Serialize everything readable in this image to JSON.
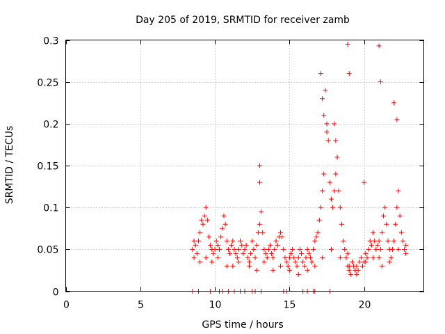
{
  "chart_data": {
    "type": "scatter",
    "title": "Day 205 of 2019, SRMTID for receiver zamb",
    "xlabel": "GPS time / hours",
    "ylabel": "SRMTID / TECUs",
    "xlim": [
      0,
      24
    ],
    "ylim": [
      0,
      0.3
    ],
    "x_ticks": [
      0,
      5,
      10,
      15,
      20
    ],
    "x_tick_labels": [
      "0",
      "5",
      "10",
      "15",
      "20"
    ],
    "y_ticks": [
      0,
      0.05,
      0.1,
      0.15,
      0.2,
      0.25,
      0.3
    ],
    "y_tick_labels": [
      "0",
      "0.05",
      "0.1",
      "0.15",
      "0.2",
      "0.25",
      "0.3"
    ],
    "grid": true,
    "marker": "+",
    "color": "#ff0000",
    "series": [
      {
        "name": "SRMTID",
        "x": [
          8.5,
          8.6,
          8.7,
          8.8,
          8.9,
          9.0,
          9.1,
          9.2,
          9.3,
          9.4,
          9.5,
          9.6,
          9.7,
          9.8,
          9.9,
          10.0,
          10.1,
          10.2,
          10.3,
          10.4,
          10.5,
          10.6,
          10.7,
          10.8,
          10.9,
          11.0,
          11.1,
          11.2,
          11.3,
          11.4,
          11.5,
          11.6,
          11.7,
          11.8,
          11.9,
          12.0,
          12.1,
          12.2,
          12.3,
          12.4,
          12.5,
          12.6,
          12.7,
          12.8,
          12.9,
          13.0,
          13.0,
          13.0,
          13.1,
          13.2,
          13.3,
          13.4,
          13.5,
          13.6,
          13.7,
          13.8,
          13.9,
          14.0,
          14.1,
          14.2,
          14.3,
          14.4,
          14.5,
          14.6,
          14.7,
          14.8,
          14.9,
          15.0,
          15.1,
          15.2,
          15.3,
          15.4,
          15.5,
          15.6,
          15.7,
          15.8,
          15.9,
          16.0,
          16.1,
          16.2,
          16.3,
          16.4,
          16.5,
          16.6,
          16.7,
          16.8,
          16.9,
          17.0,
          17.1,
          17.2,
          17.3,
          17.4,
          17.5,
          17.6,
          17.7,
          17.8,
          17.9,
          18.0,
          18.1,
          18.2,
          18.3,
          18.4,
          18.5,
          18.6,
          18.7,
          18.8,
          18.9,
          19.0,
          19.0,
          19.1,
          19.2,
          19.3,
          19.4,
          19.5,
          19.6,
          19.7,
          19.8,
          19.9,
          20.0,
          20.1,
          20.2,
          20.3,
          20.4,
          20.5,
          20.6,
          20.7,
          20.8,
          20.9,
          21.0,
          21.0,
          21.1,
          21.2,
          21.3,
          21.4,
          21.5,
          21.6,
          21.7,
          21.8,
          21.9,
          22.0,
          22.1,
          22.2,
          22.3,
          22.4,
          22.5,
          22.6,
          22.7,
          22.8,
          8.6,
          9.0,
          9.4,
          9.8,
          10.2,
          10.8,
          11.2,
          11.6,
          12.3,
          12.8,
          13.3,
          13.9,
          14.4,
          15.0,
          15.6,
          16.2,
          16.7,
          17.2,
          17.8,
          18.4,
          18.9,
          19.5,
          20.1,
          20.6,
          21.2,
          21.7,
          22.3,
          22.8,
          17.1,
          17.2,
          17.3,
          17.5,
          18.0,
          18.1,
          18.9,
          19.0,
          20.0,
          21.0,
          21.1,
          22.0,
          22.2,
          8.5,
          8.9,
          9.7,
          10.3,
          10.5,
          10.9,
          11.3,
          11.7,
          12.0,
          12.5,
          12.7,
          13.1,
          14.6,
          14.8,
          15.9,
          16.2,
          16.6,
          16.7,
          17.7
        ],
        "y": [
          0.05,
          0.06,
          0.055,
          0.045,
          0.06,
          0.07,
          0.085,
          0.08,
          0.09,
          0.1,
          0.085,
          0.065,
          0.055,
          0.05,
          0.045,
          0.05,
          0.06,
          0.055,
          0.05,
          0.065,
          0.075,
          0.09,
          0.08,
          0.06,
          0.05,
          0.045,
          0.055,
          0.06,
          0.05,
          0.045,
          0.04,
          0.05,
          0.06,
          0.055,
          0.045,
          0.05,
          0.055,
          0.04,
          0.035,
          0.045,
          0.06,
          0.05,
          0.04,
          0.055,
          0.07,
          0.15,
          0.13,
          0.08,
          0.095,
          0.07,
          0.05,
          0.045,
          0.04,
          0.05,
          0.055,
          0.045,
          0.04,
          0.05,
          0.06,
          0.055,
          0.065,
          0.07,
          0.065,
          0.05,
          0.04,
          0.035,
          0.03,
          0.04,
          0.045,
          0.05,
          0.04,
          0.035,
          0.03,
          0.04,
          0.05,
          0.045,
          0.035,
          0.03,
          0.04,
          0.05,
          0.045,
          0.04,
          0.035,
          0.05,
          0.06,
          0.065,
          0.07,
          0.085,
          0.1,
          0.12,
          0.14,
          0.24,
          0.2,
          0.18,
          0.13,
          0.11,
          0.1,
          0.12,
          0.14,
          0.16,
          0.12,
          0.1,
          0.08,
          0.06,
          0.05,
          0.04,
          0.045,
          0.03,
          0.025,
          0.02,
          0.035,
          0.03,
          0.025,
          0.02,
          0.025,
          0.035,
          0.04,
          0.03,
          0.035,
          0.045,
          0.04,
          0.05,
          0.06,
          0.055,
          0.07,
          0.06,
          0.05,
          0.055,
          0.06,
          0.04,
          0.05,
          0.07,
          0.09,
          0.1,
          0.08,
          0.06,
          0.05,
          0.04,
          0.05,
          0.06,
          0.08,
          0.1,
          0.12,
          0.09,
          0.07,
          0.06,
          0.05,
          0.055,
          0.04,
          0.035,
          0.04,
          0.035,
          0.04,
          0.03,
          0.03,
          0.035,
          0.03,
          0.025,
          0.035,
          0.025,
          0.03,
          0.025,
          0.02,
          0.025,
          0.03,
          0.04,
          0.05,
          0.04,
          0.03,
          0.03,
          0.035,
          0.04,
          0.03,
          0.035,
          0.05,
          0.045,
          0.26,
          0.23,
          0.21,
          0.19,
          0.2,
          0.18,
          0.295,
          0.26,
          0.13,
          0.293,
          0.25,
          0.225,
          0.205,
          0.0,
          0.0,
          0.0,
          0.0,
          0.0,
          0.0,
          0.0,
          0.0,
          0.0,
          0.0,
          0.0,
          0.0,
          0.0,
          0.0,
          0.0,
          0.0,
          0.0,
          0.0,
          0.0
        ]
      }
    ]
  }
}
